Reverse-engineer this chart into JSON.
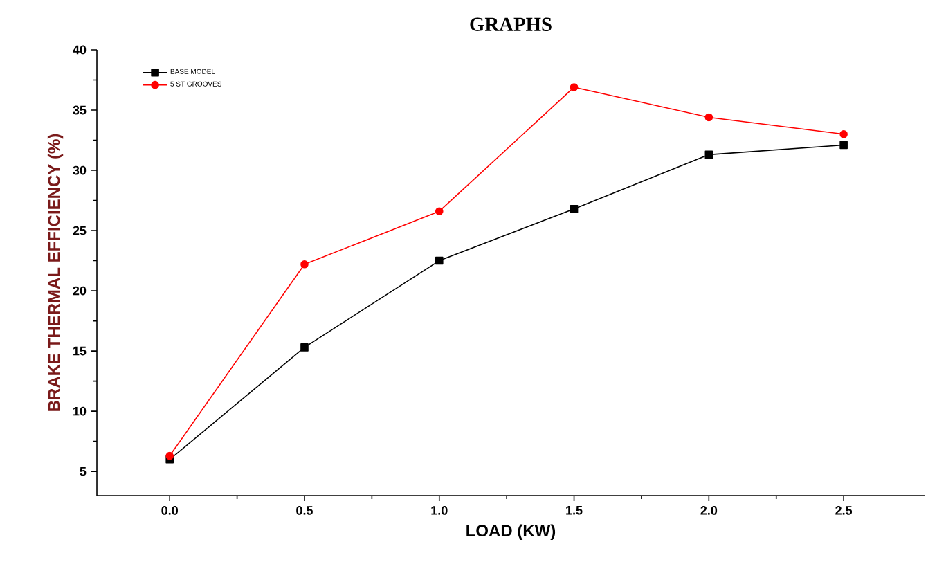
{
  "chart_data": {
    "type": "line",
    "title": "GRAPHS",
    "xlabel": "LOAD (KW)",
    "ylabel": "BRAKE THERMAL EFFICIENCY (%)",
    "x": [
      0.0,
      0.5,
      1.0,
      1.5,
      2.0,
      2.5
    ],
    "series": [
      {
        "name": "BASE MODEL",
        "color": "#000000",
        "marker": "square",
        "values": [
          6.0,
          15.3,
          22.5,
          26.8,
          31.3,
          32.1
        ]
      },
      {
        "name": "5 ST GROOVES",
        "color": "#ff0000",
        "marker": "circle",
        "values": [
          6.3,
          22.2,
          26.6,
          36.9,
          34.4,
          33.0
        ]
      }
    ],
    "xlim": [
      -0.27,
      2.8
    ],
    "ylim": [
      3,
      40
    ],
    "xticks": [
      {
        "value": 0.0,
        "label": "0.0"
      },
      {
        "value": 0.5,
        "label": "0.5"
      },
      {
        "value": 1.0,
        "label": "1.0"
      },
      {
        "value": 1.5,
        "label": "1.5"
      },
      {
        "value": 2.0,
        "label": "2.0"
      },
      {
        "value": 2.5,
        "label": "2.5"
      }
    ],
    "yticks": [
      5,
      10,
      15,
      20,
      25,
      30,
      35,
      40
    ],
    "legend": "top left",
    "grid": false,
    "line_style": "solid"
  }
}
